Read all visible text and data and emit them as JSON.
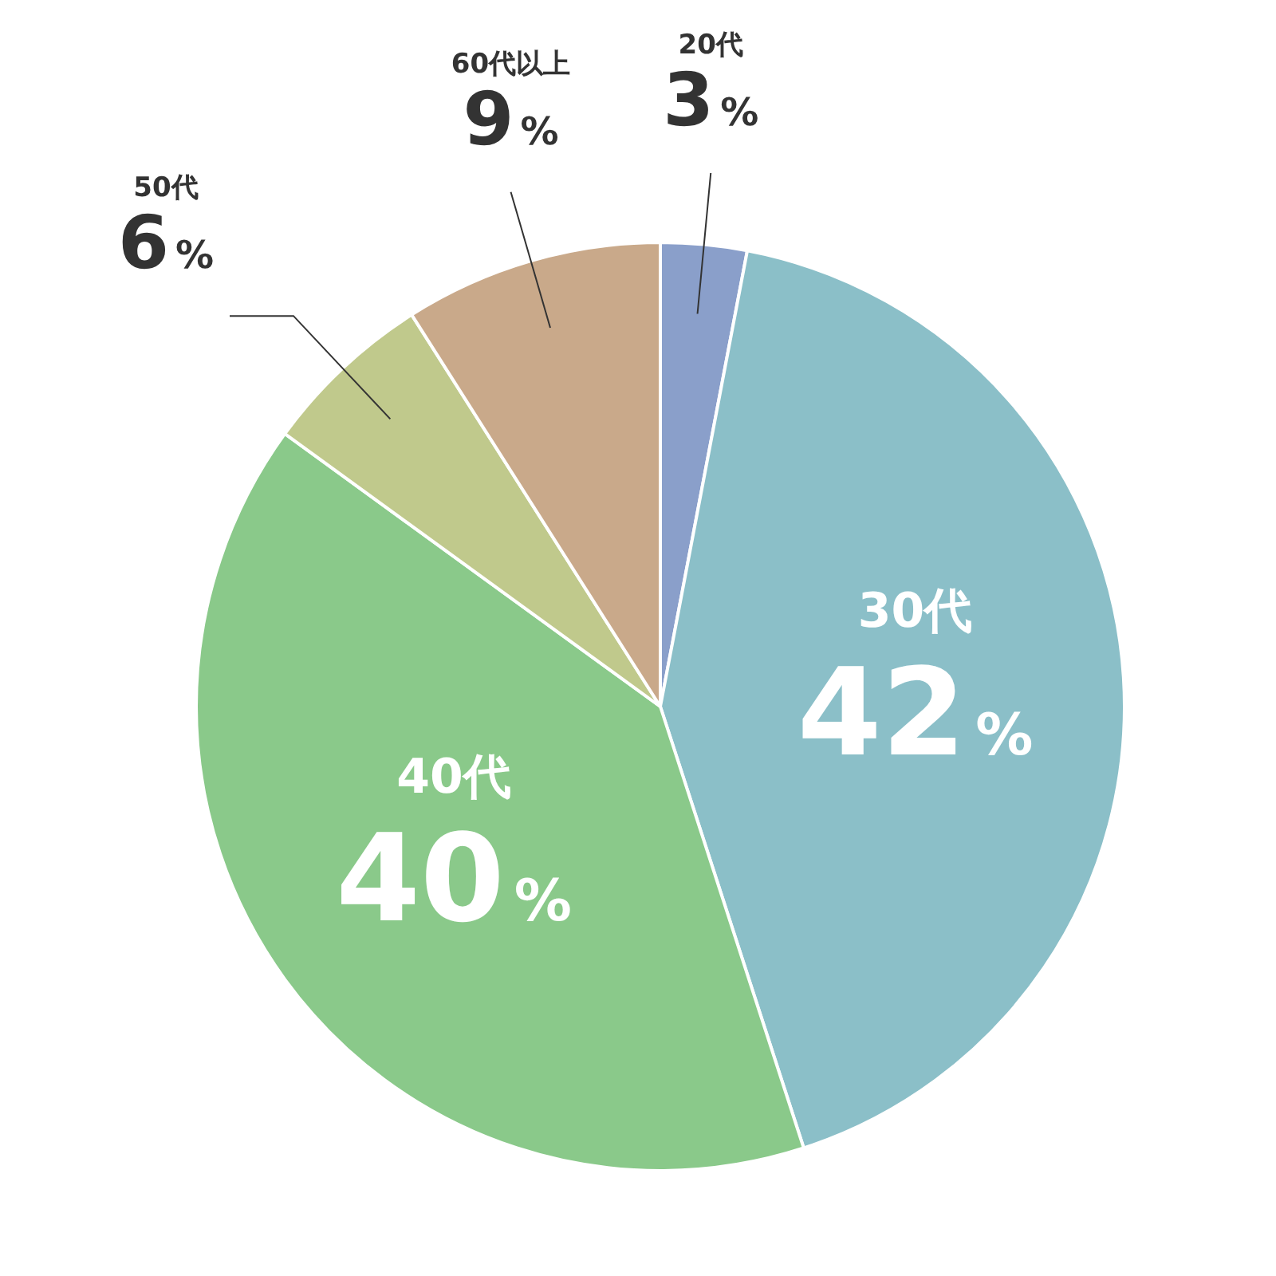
{
  "chart_data": {
    "type": "pie",
    "categories": [
      "20代",
      "30代",
      "40代",
      "50代",
      "60代以上"
    ],
    "values": [
      3,
      42,
      40,
      6,
      9
    ],
    "colors": [
      "#8a9fca",
      "#8bbfc8",
      "#8ac98a",
      "#c0c98c",
      "#c9a98a"
    ],
    "value_labels": [
      "3%",
      "42%",
      "40%",
      "6%",
      "9%"
    ],
    "legend": false
  }
}
